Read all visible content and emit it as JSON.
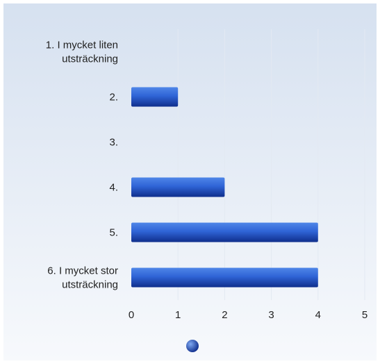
{
  "chart_data": {
    "type": "bar",
    "orientation": "horizontal",
    "categories": [
      "1. I mycket liten utsträckning",
      "2.",
      "3.",
      "4.",
      "5.",
      "6. I mycket stor utsträckning"
    ],
    "category_lines": [
      [
        "1. I mycket liten",
        "utsträckning"
      ],
      [
        "2."
      ],
      [
        "3."
      ],
      [
        "4."
      ],
      [
        "5."
      ],
      [
        "6. I mycket stor",
        "utsträckning"
      ]
    ],
    "values": [
      0,
      1,
      0,
      2,
      4,
      4
    ],
    "xlim": [
      0,
      5
    ],
    "xticks": [
      "0",
      "1",
      "2",
      "3",
      "4",
      "5"
    ],
    "grid": true,
    "legend": "bottom",
    "colors": {
      "bar_light": "#4f86e8",
      "bar_dark": "#0f2e8c",
      "background_top": "#d6e1f0",
      "background_bottom": "#f7f9fc",
      "gridline": "#e3e9f2",
      "legend_marker": "#2f64d6"
    }
  }
}
